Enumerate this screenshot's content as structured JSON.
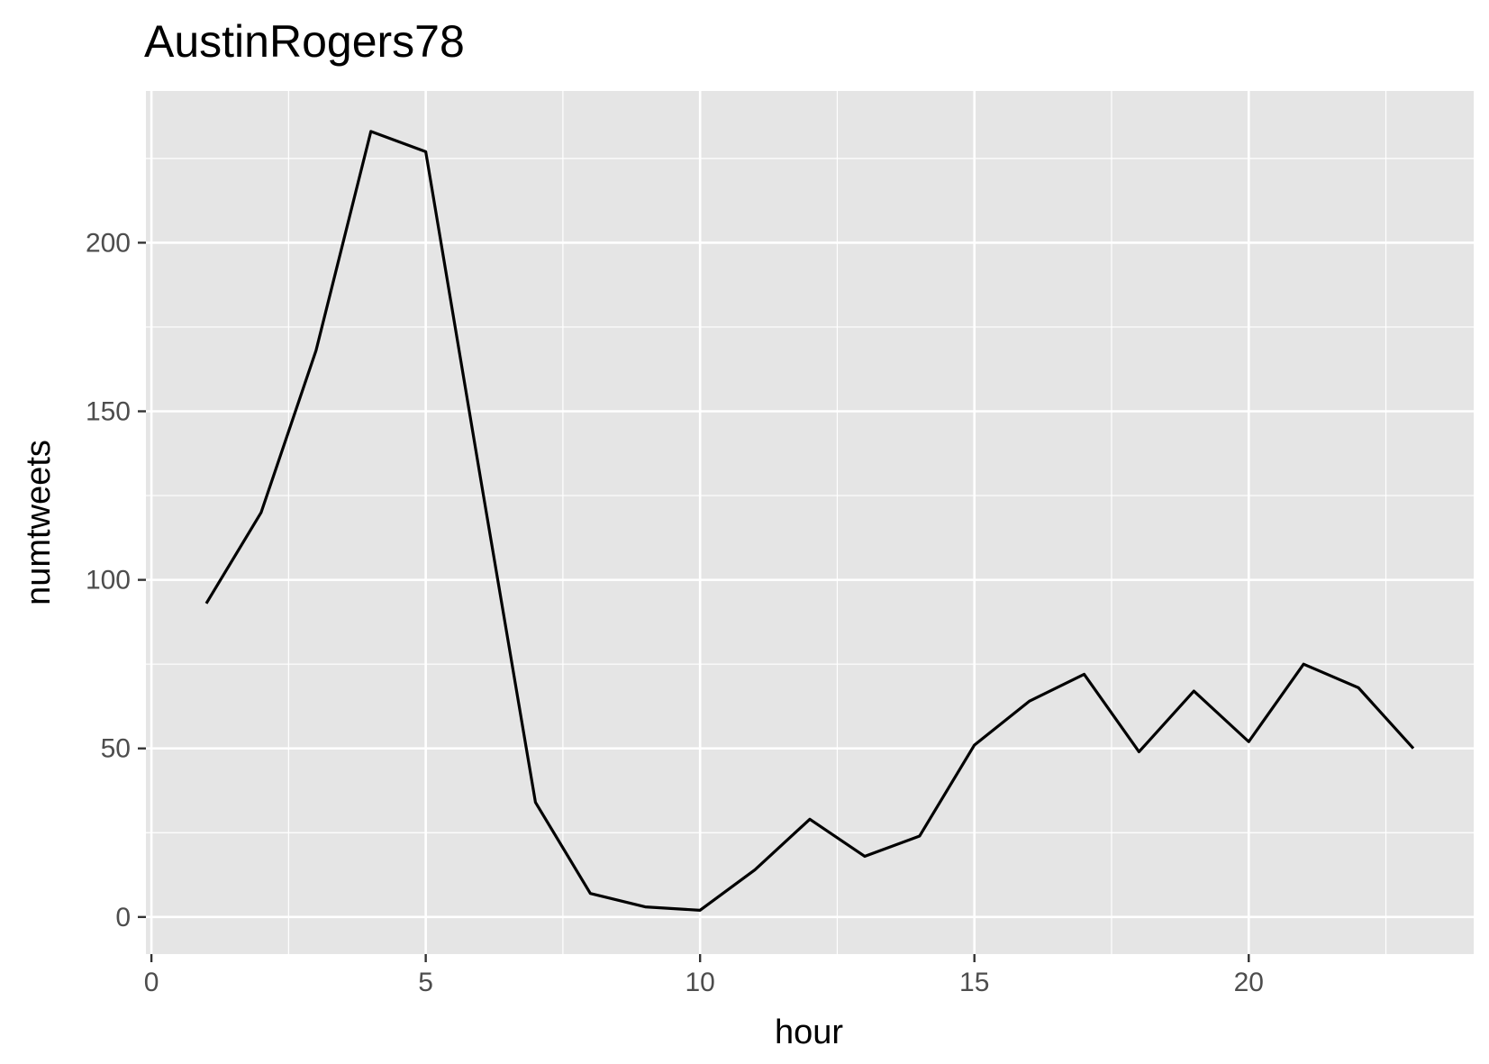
{
  "chart_data": {
    "type": "line",
    "title": "AustinRogers78",
    "xlabel": "hour",
    "ylabel": "numtweets",
    "xlim": [
      -0.1,
      24.1
    ],
    "ylim": [
      -11,
      245
    ],
    "x_ticks": [
      0,
      5,
      10,
      15,
      20
    ],
    "y_ticks": [
      0,
      50,
      100,
      150,
      200
    ],
    "x_ticks_labels": [
      "0",
      "5",
      "10",
      "15",
      "20"
    ],
    "y_ticks_labels": [
      "0",
      "50",
      "100",
      "150",
      "200"
    ],
    "grid": true,
    "panel_color": "#e5e5e5",
    "line_color": "#000000",
    "series": [
      {
        "x": [
          1,
          2,
          3,
          4,
          5,
          6,
          7,
          8,
          9,
          10,
          11,
          12,
          13,
          14,
          15,
          16,
          17,
          18,
          19,
          20,
          21,
          22,
          23
        ],
        "values": [
          93,
          120,
          168,
          233,
          227,
          130,
          34,
          7,
          3,
          2,
          14,
          29,
          18,
          24,
          51,
          64,
          72,
          49,
          67,
          52,
          75,
          68,
          50
        ]
      }
    ]
  }
}
